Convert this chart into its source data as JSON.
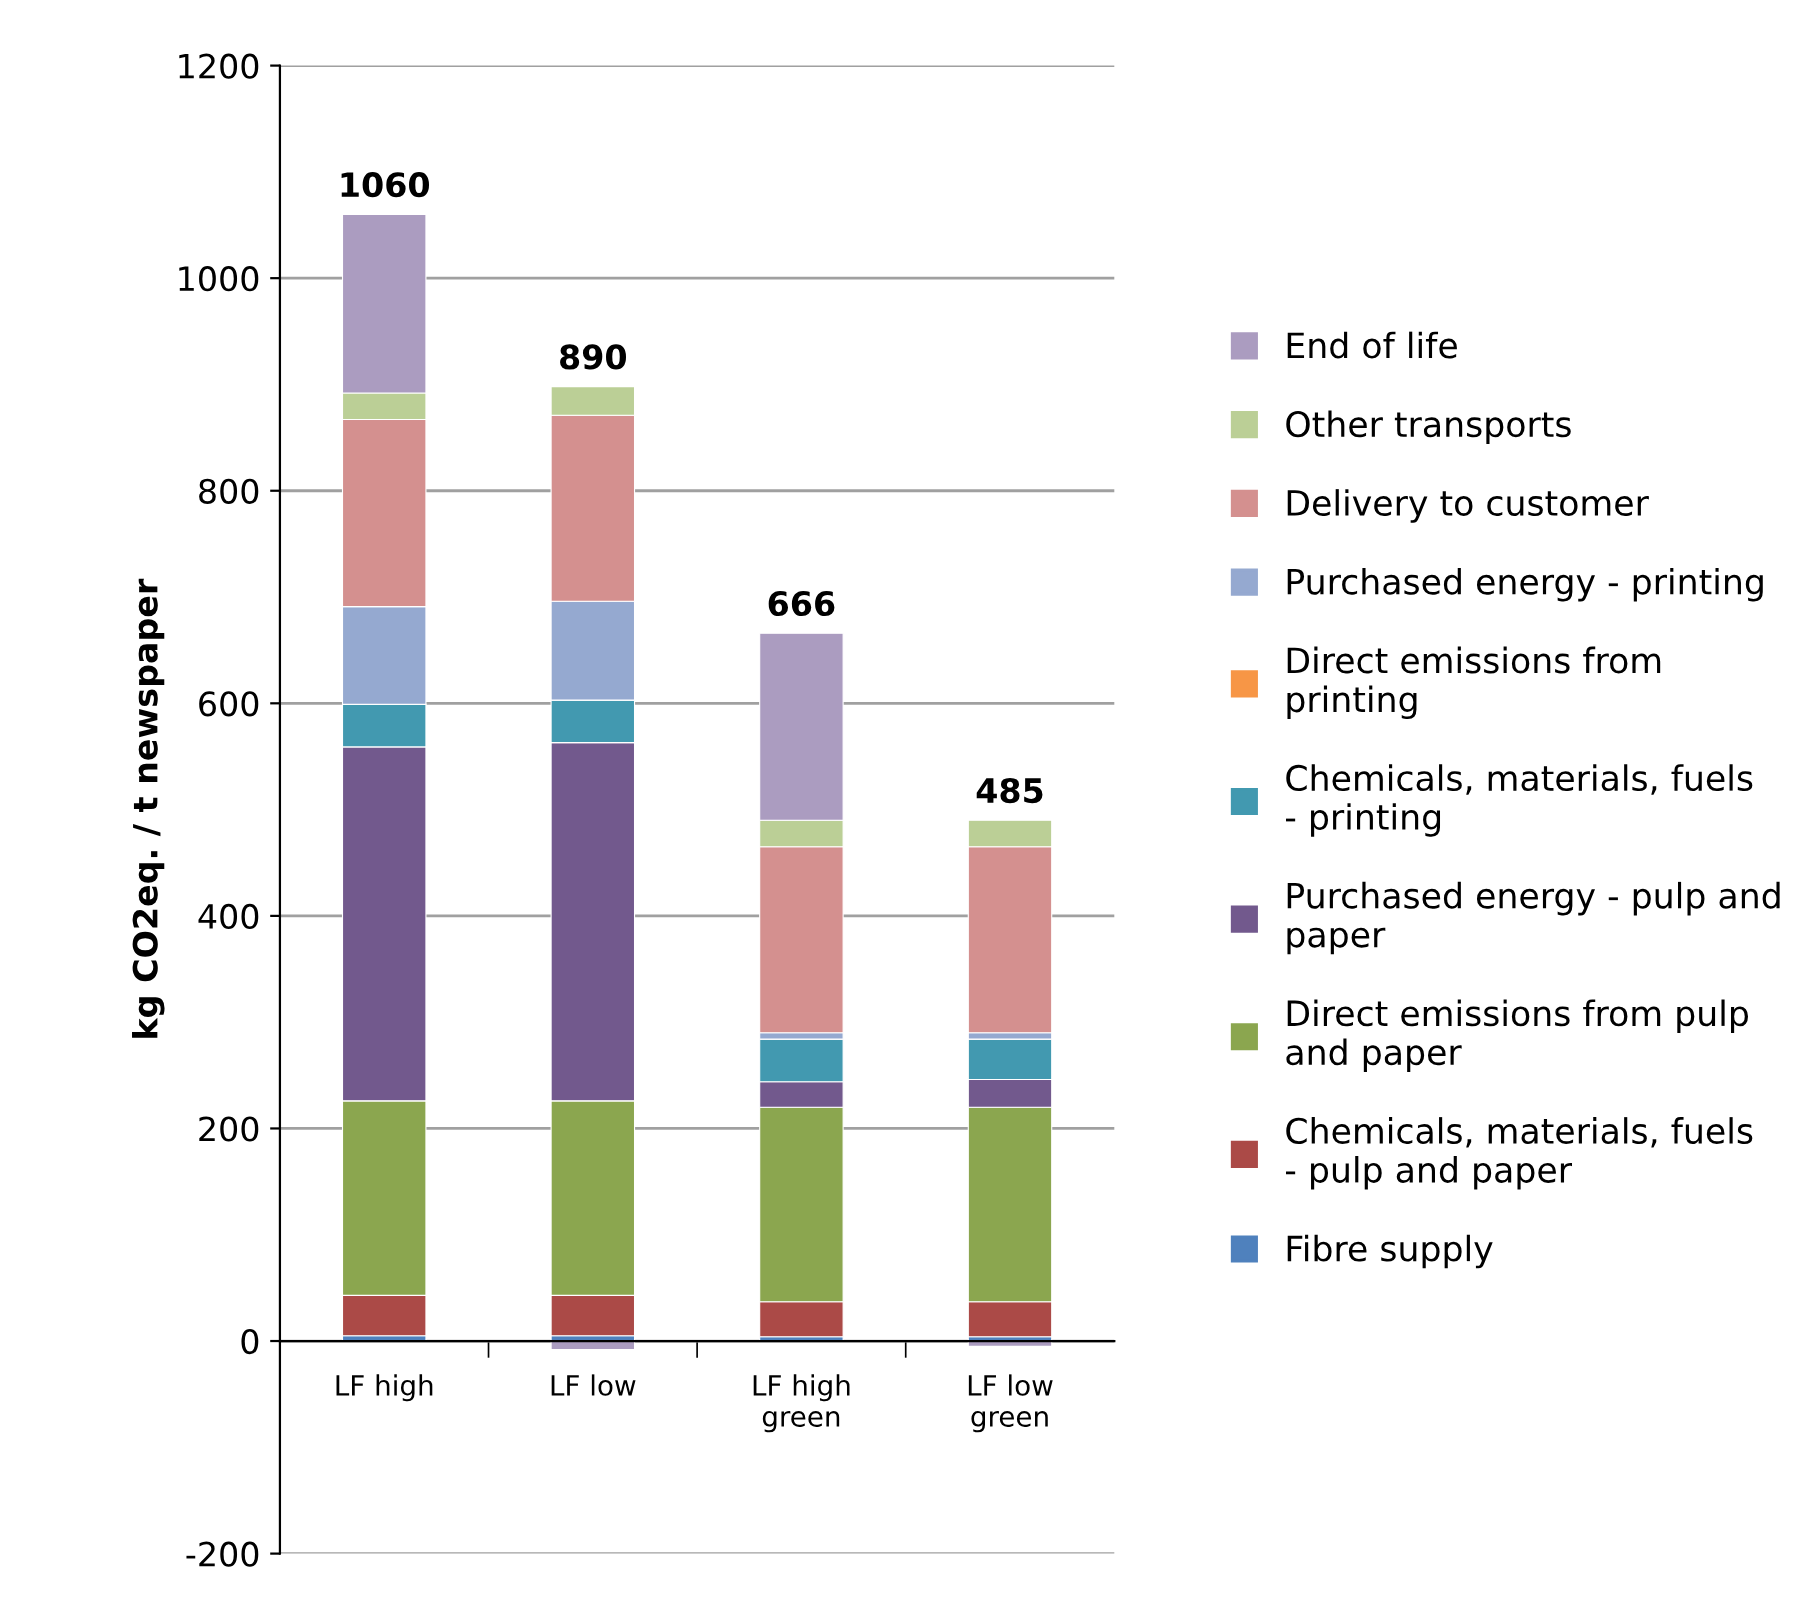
{
  "chart_data": {
    "type": "bar",
    "stacked": true,
    "ylabel": "kg CO2eq. / t newspaper",
    "categories": [
      "LF high",
      "LF low",
      "LF high green",
      "LF low green"
    ],
    "series": [
      {
        "name": "Fibre supply",
        "color": "#4f81bd",
        "values": [
          5,
          5,
          4,
          4
        ]
      },
      {
        "name": "Chemicals, materials, fuels - pulp and paper",
        "color": "#ab4a47",
        "values": [
          38,
          38,
          33,
          33
        ]
      },
      {
        "name": "Direct emissions from pulp and paper",
        "color": "#8ba64f",
        "values": [
          183,
          183,
          183,
          183
        ]
      },
      {
        "name": "Purchased energy - pulp and paper",
        "color": "#72598d",
        "values": [
          333,
          337,
          24,
          26
        ]
      },
      {
        "name": "Chemicals, materials, fuels - printing",
        "color": "#4299b0",
        "values": [
          40,
          40,
          40,
          38
        ]
      },
      {
        "name": "Direct emissions from printing",
        "color": "#f79646",
        "values": [
          0,
          0,
          0,
          0
        ]
      },
      {
        "name": "Purchased energy - printing",
        "color": "#95a9d0",
        "values": [
          92,
          93,
          6,
          6
        ]
      },
      {
        "name": "Delivery to customer",
        "color": "#d4908f",
        "values": [
          176,
          175,
          175,
          175
        ]
      },
      {
        "name": "Other transports",
        "color": "#bbcf96",
        "values": [
          25,
          27,
          25,
          25
        ]
      },
      {
        "name": "End of life",
        "color": "#ab9cc0",
        "values": [
          168,
          -8,
          176,
          -5
        ]
      }
    ],
    "totals": [
      "1060",
      "890",
      "666",
      "485"
    ],
    "ylim": [
      -200,
      1200
    ],
    "yticks": [
      -200,
      0,
      200,
      400,
      600,
      800,
      1000,
      1200
    ],
    "grid": "y",
    "legend": "right"
  }
}
